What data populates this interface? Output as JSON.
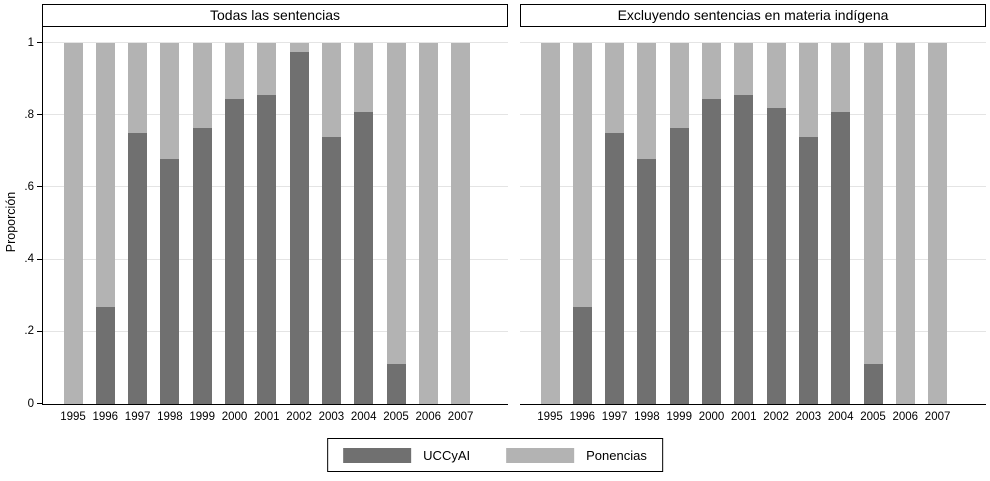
{
  "y_axis": {
    "title": "Proporción",
    "ticks": [
      {
        "label": "0",
        "value": 0
      },
      {
        "label": ".2",
        "value": 0.2
      },
      {
        "label": ".4",
        "value": 0.4
      },
      {
        "label": ".6",
        "value": 0.6
      },
      {
        "label": ".8",
        "value": 0.8
      },
      {
        "label": "1",
        "value": 1
      }
    ]
  },
  "colors": {
    "uccyai": "#707070",
    "ponencias": "#b3b3b3",
    "gridline": "#e4e4e4",
    "axis": "#000000",
    "background": "#ffffff"
  },
  "legend": {
    "items": [
      {
        "label": "UCCyAI",
        "color": "#707070"
      },
      {
        "label": "Ponencias",
        "color": "#b3b3b3"
      }
    ]
  },
  "chart_data": [
    {
      "type": "bar",
      "stacked": true,
      "title": "Todas las sentencias",
      "xlabel": "",
      "ylabel": "Proporción",
      "ylim": [
        0,
        1
      ],
      "grid": true,
      "categories": [
        "1995",
        "1996",
        "1997",
        "1998",
        "1999",
        "2000",
        "2001",
        "2002",
        "2003",
        "2004",
        "2005",
        "2006",
        "2007"
      ],
      "series": [
        {
          "name": "UCCyAI",
          "values": [
            0,
            0.27,
            0.75,
            0.68,
            0.765,
            0.845,
            0.855,
            0.975,
            0.74,
            0.81,
            0.11,
            0,
            0
          ]
        },
        {
          "name": "Ponencias",
          "values": [
            1,
            0.73,
            0.25,
            0.32,
            0.235,
            0.155,
            0.145,
            0.025,
            0.26,
            0.19,
            0.89,
            1,
            1
          ]
        }
      ]
    },
    {
      "type": "bar",
      "stacked": true,
      "title": "Excluyendo sentencias en materia indígena",
      "xlabel": "",
      "ylabel": "Proporción",
      "ylim": [
        0,
        1
      ],
      "grid": true,
      "categories": [
        "1995",
        "1996",
        "1997",
        "1998",
        "1999",
        "2000",
        "2001",
        "2002",
        "2003",
        "2004",
        "2005",
        "2006",
        "2007"
      ],
      "series": [
        {
          "name": "UCCyAI",
          "values": [
            0,
            0.27,
            0.75,
            0.68,
            0.765,
            0.845,
            0.855,
            0.82,
            0.74,
            0.81,
            0.11,
            0,
            0
          ]
        },
        {
          "name": "Ponencias",
          "values": [
            1,
            0.73,
            0.25,
            0.32,
            0.235,
            0.155,
            0.145,
            0.18,
            0.26,
            0.19,
            0.89,
            1,
            1
          ]
        }
      ]
    }
  ]
}
